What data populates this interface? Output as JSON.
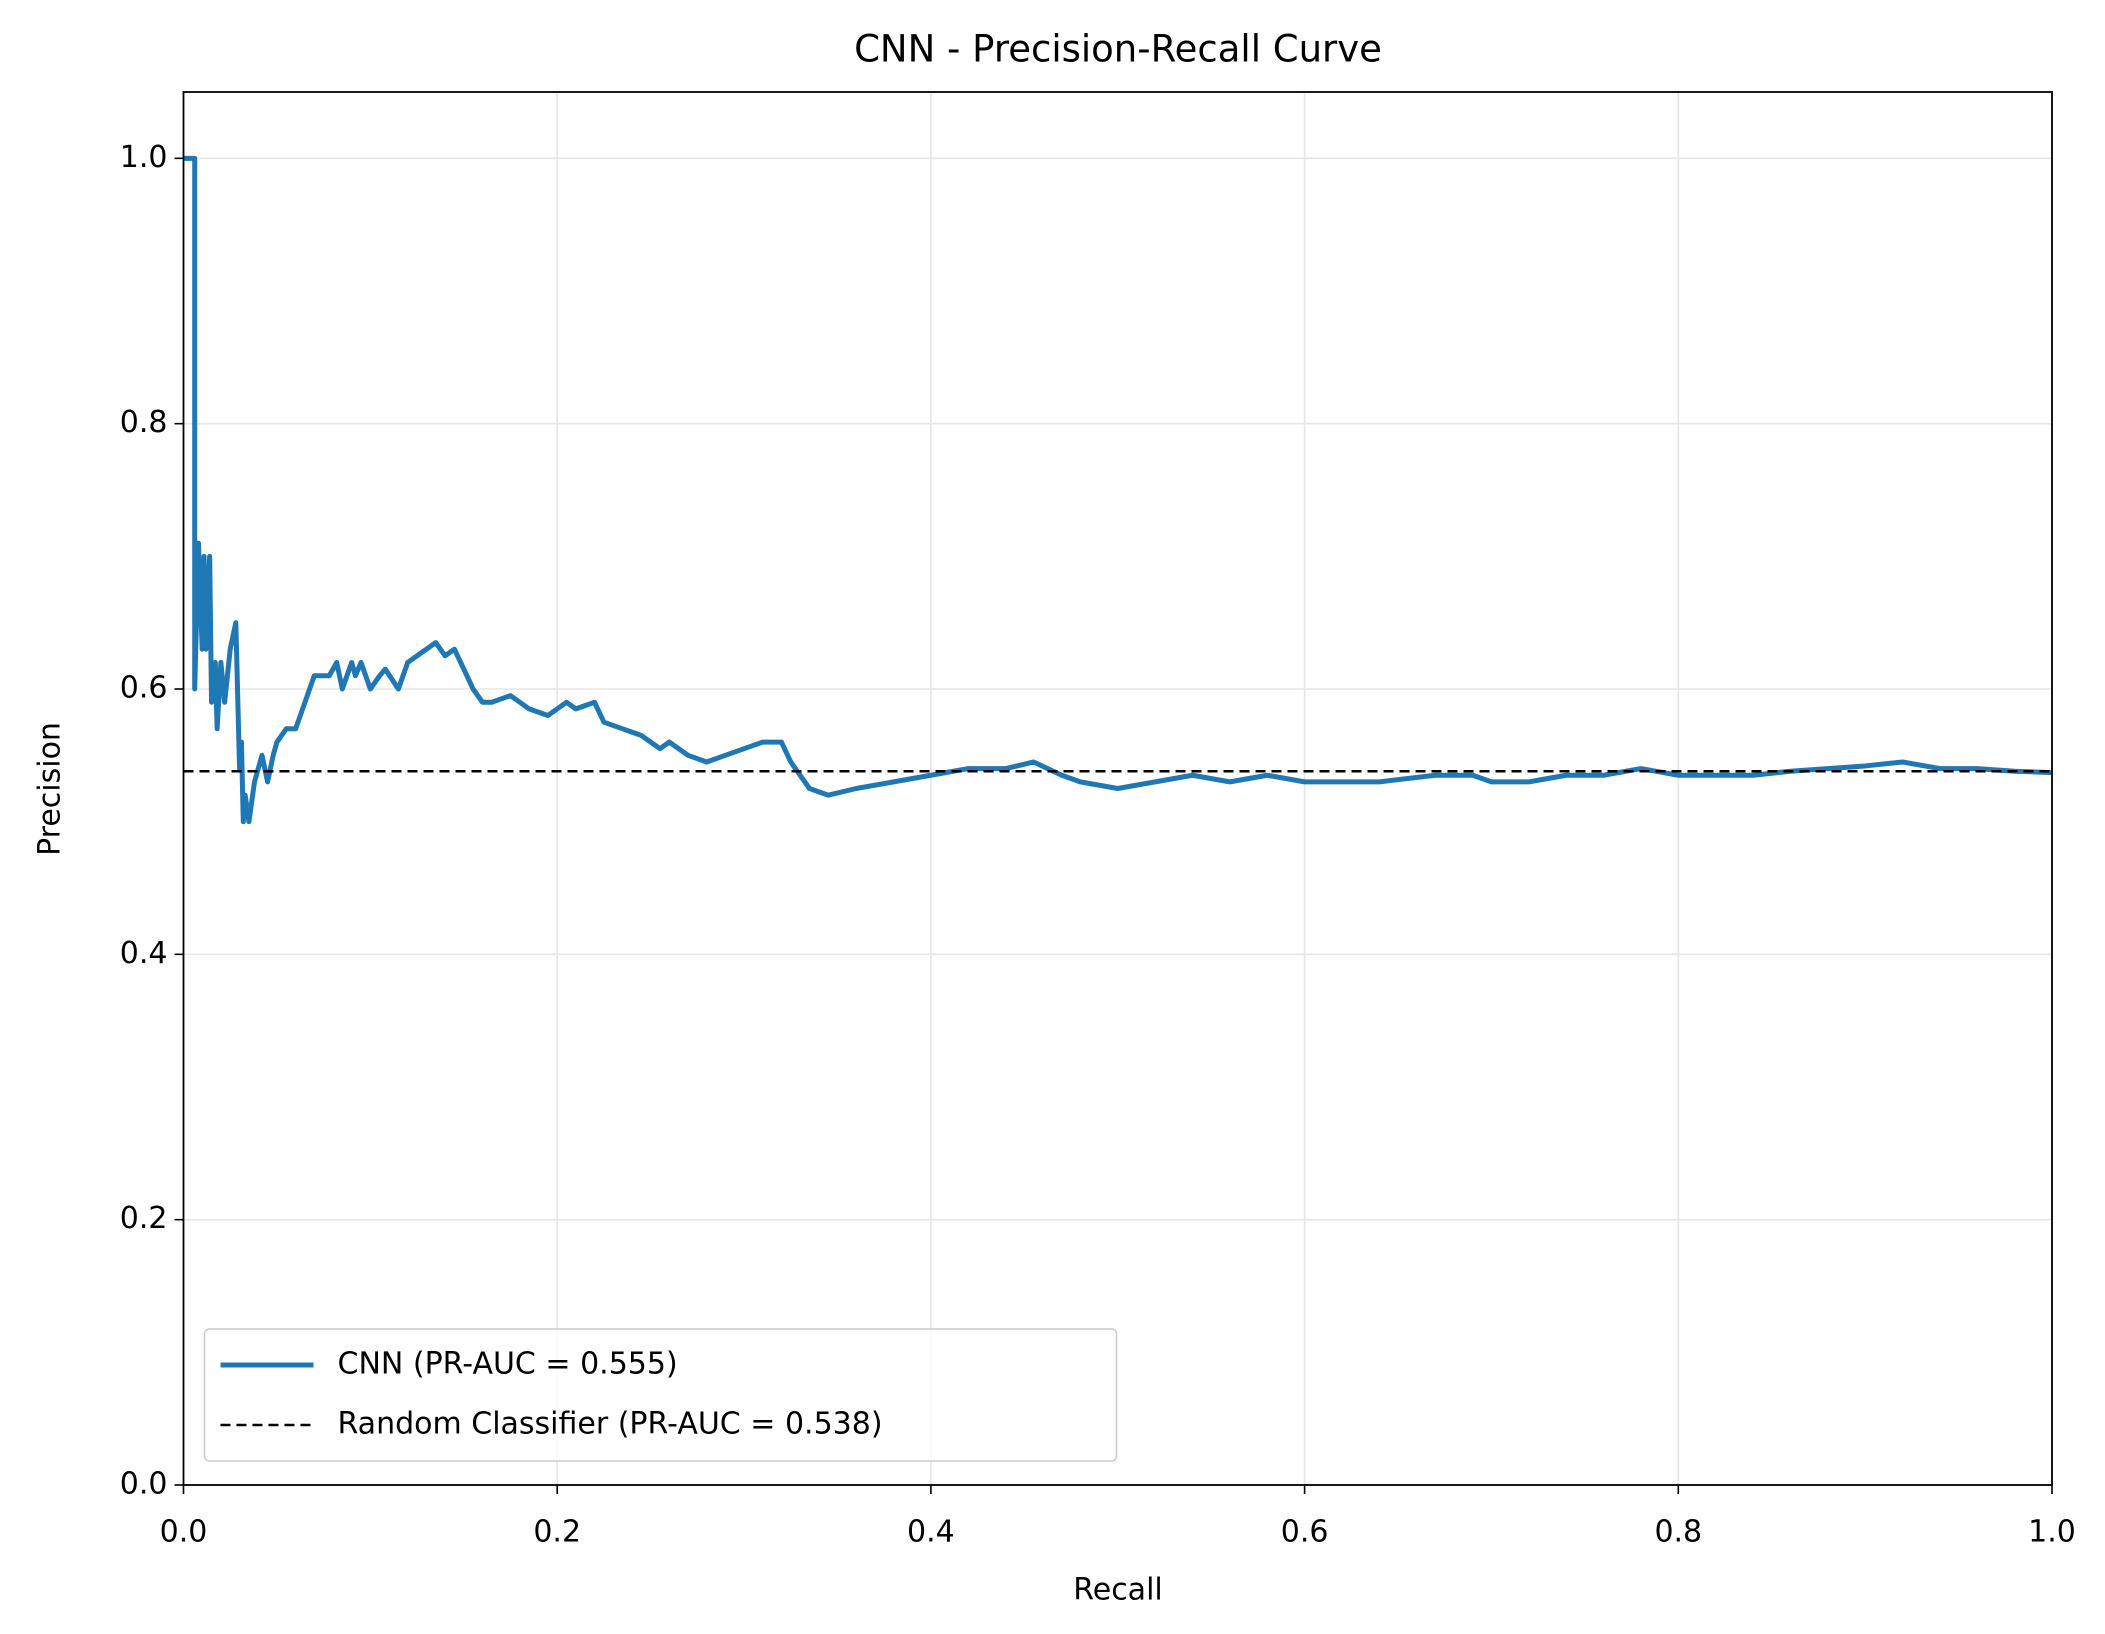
{
  "chart_data": {
    "type": "line",
    "title": "CNN - Precision-Recall Curve",
    "x_label": "Recall",
    "y_label": "Precision",
    "xlim": [
      0,
      1
    ],
    "ylim": [
      0,
      1.05
    ],
    "xticks": [
      {
        "value": 0,
        "label": "0.0"
      },
      0.2,
      0.4,
      0.6,
      0.8,
      {
        "value": 1,
        "label": "1.0"
      }
    ],
    "yticks": [
      {
        "value": 0,
        "label": "0.0"
      },
      0.2,
      0.4,
      0.6,
      0.8,
      {
        "value": 1,
        "label": "1.0"
      }
    ],
    "grid": true,
    "legend": "lower left",
    "series": [
      {
        "name": "CNN (PR-AUC = 0.555)",
        "color": "#1f77b4",
        "linestyle": "solid",
        "x": [
          0,
          0.006,
          0.006,
          0.008,
          0.01,
          0.011,
          0.012,
          0.014,
          0.015,
          0.017,
          0.018,
          0.02,
          0.022,
          0.025,
          0.028,
          0.03,
          0.031,
          0.032,
          0.033,
          0.035,
          0.038,
          0.042,
          0.045,
          0.048,
          0.05,
          0.055,
          0.06,
          0.065,
          0.07,
          0.078,
          0.082,
          0.085,
          0.09,
          0.092,
          0.095,
          0.1,
          0.105,
          0.108,
          0.115,
          0.12,
          0.135,
          0.14,
          0.145,
          0.15,
          0.155,
          0.16,
          0.165,
          0.175,
          0.18,
          0.185,
          0.195,
          0.205,
          0.21,
          0.22,
          0.225,
          0.235,
          0.245,
          0.255,
          0.26,
          0.27,
          0.28,
          0.29,
          0.3,
          0.31,
          0.32,
          0.325,
          0.33,
          0.335,
          0.345,
          0.36,
          0.38,
          0.4,
          0.42,
          0.44,
          0.455,
          0.47,
          0.48,
          0.5,
          0.52,
          0.54,
          0.56,
          0.58,
          0.6,
          0.62,
          0.64,
          0.67,
          0.69,
          0.7,
          0.72,
          0.74,
          0.76,
          0.78,
          0.8,
          0.82,
          0.84,
          0.86,
          0.88,
          0.9,
          0.92,
          0.94,
          0.96,
          0.98,
          1.0
        ],
        "values": [
          1.0,
          1.0,
          0.6,
          0.71,
          0.63,
          0.7,
          0.63,
          0.7,
          0.59,
          0.62,
          0.57,
          0.62,
          0.59,
          0.63,
          0.65,
          0.54,
          0.56,
          0.5,
          0.52,
          0.5,
          0.53,
          0.55,
          0.53,
          0.55,
          0.56,
          0.57,
          0.57,
          0.59,
          0.61,
          0.61,
          0.62,
          0.6,
          0.62,
          0.61,
          0.62,
          0.6,
          0.61,
          0.615,
          0.6,
          0.62,
          0.635,
          0.625,
          0.63,
          0.615,
          0.6,
          0.59,
          0.59,
          0.595,
          0.59,
          0.585,
          0.58,
          0.59,
          0.585,
          0.59,
          0.575,
          0.57,
          0.565,
          0.555,
          0.56,
          0.55,
          0.545,
          0.55,
          0.555,
          0.56,
          0.56,
          0.545,
          0.535,
          0.525,
          0.52,
          0.525,
          0.53,
          0.535,
          0.54,
          0.54,
          0.545,
          0.535,
          0.53,
          0.525,
          0.53,
          0.535,
          0.53,
          0.535,
          0.53,
          0.53,
          0.53,
          0.535,
          0.535,
          0.53,
          0.53,
          0.535,
          0.535,
          0.54,
          0.535,
          0.535,
          0.535,
          0.538,
          0.54,
          0.542,
          0.545,
          0.54,
          0.54,
          0.538,
          0.537
        ]
      },
      {
        "name": "Random Classifier (PR-AUC = 0.538)",
        "color": "#000000",
        "linestyle": "dashed",
        "x": [
          0,
          1
        ],
        "values": [
          0.538,
          0.538
        ]
      }
    ]
  }
}
